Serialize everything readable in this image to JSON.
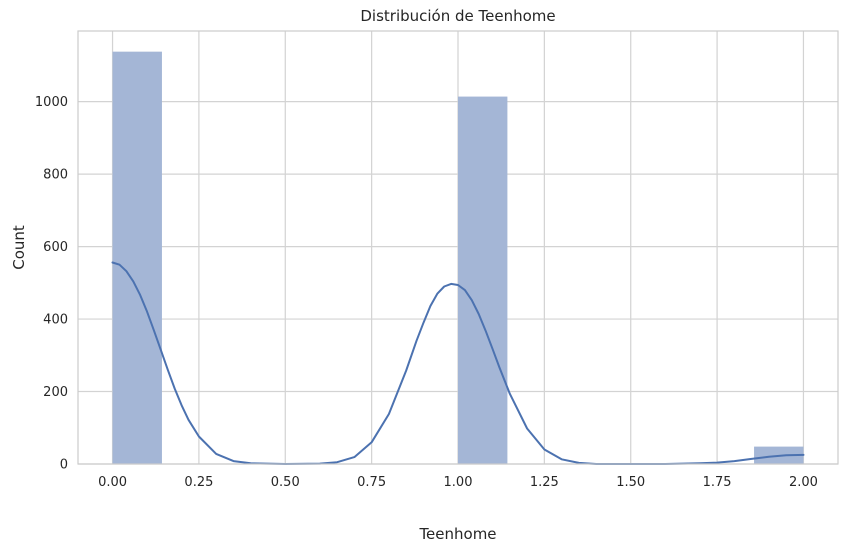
{
  "chart_data": {
    "type": "bar",
    "title": "Distribución de Teenhome",
    "xlabel": "Teenhome",
    "ylabel": "Count",
    "xlim": [
      -0.1,
      2.1
    ],
    "ylim": [
      0,
      1195
    ],
    "x_ticks": [
      0.0,
      0.25,
      0.5,
      0.75,
      1.0,
      1.25,
      1.5,
      1.75,
      2.0
    ],
    "x_tick_labels": [
      "0.00",
      "0.25",
      "0.50",
      "0.75",
      "1.00",
      "1.25",
      "1.50",
      "1.75",
      "2.00"
    ],
    "y_ticks": [
      0,
      200,
      400,
      600,
      800,
      1000
    ],
    "y_tick_labels": [
      "0",
      "200",
      "400",
      "600",
      "800",
      "1000"
    ],
    "bins": [
      {
        "x0": 0.0,
        "x1": 0.143,
        "count": 1138
      },
      {
        "x0": 1.0,
        "x1": 1.143,
        "count": 1014
      },
      {
        "x0": 1.857,
        "x1": 2.0,
        "count": 48
      }
    ],
    "kde": {
      "x": [
        0.0,
        0.02,
        0.04,
        0.06,
        0.08,
        0.1,
        0.12,
        0.14,
        0.16,
        0.18,
        0.2,
        0.22,
        0.25,
        0.3,
        0.35,
        0.4,
        0.5,
        0.6,
        0.65,
        0.7,
        0.75,
        0.8,
        0.85,
        0.88,
        0.9,
        0.92,
        0.94,
        0.96,
        0.98,
        1.0,
        1.02,
        1.04,
        1.06,
        1.08,
        1.1,
        1.12,
        1.15,
        1.2,
        1.25,
        1.3,
        1.35,
        1.4,
        1.5,
        1.6,
        1.7,
        1.75,
        1.8,
        1.85,
        1.9,
        1.95,
        2.0
      ],
      "y": [
        556,
        550,
        532,
        504,
        466,
        420,
        368,
        314,
        260,
        208,
        162,
        122,
        76,
        28,
        8,
        2,
        0,
        1,
        5,
        19,
        60,
        138,
        258,
        340,
        390,
        436,
        470,
        490,
        497,
        494,
        480,
        452,
        414,
        368,
        318,
        266,
        194,
        98,
        40,
        13,
        3,
        0,
        0,
        0,
        2,
        4,
        8,
        14,
        20,
        24,
        25
      ]
    },
    "grid": true,
    "colors": {
      "bar": "#a4b6d6",
      "kde": "#4c72b0",
      "grid": "#d3d3d3",
      "axis": "#cccccc"
    }
  }
}
